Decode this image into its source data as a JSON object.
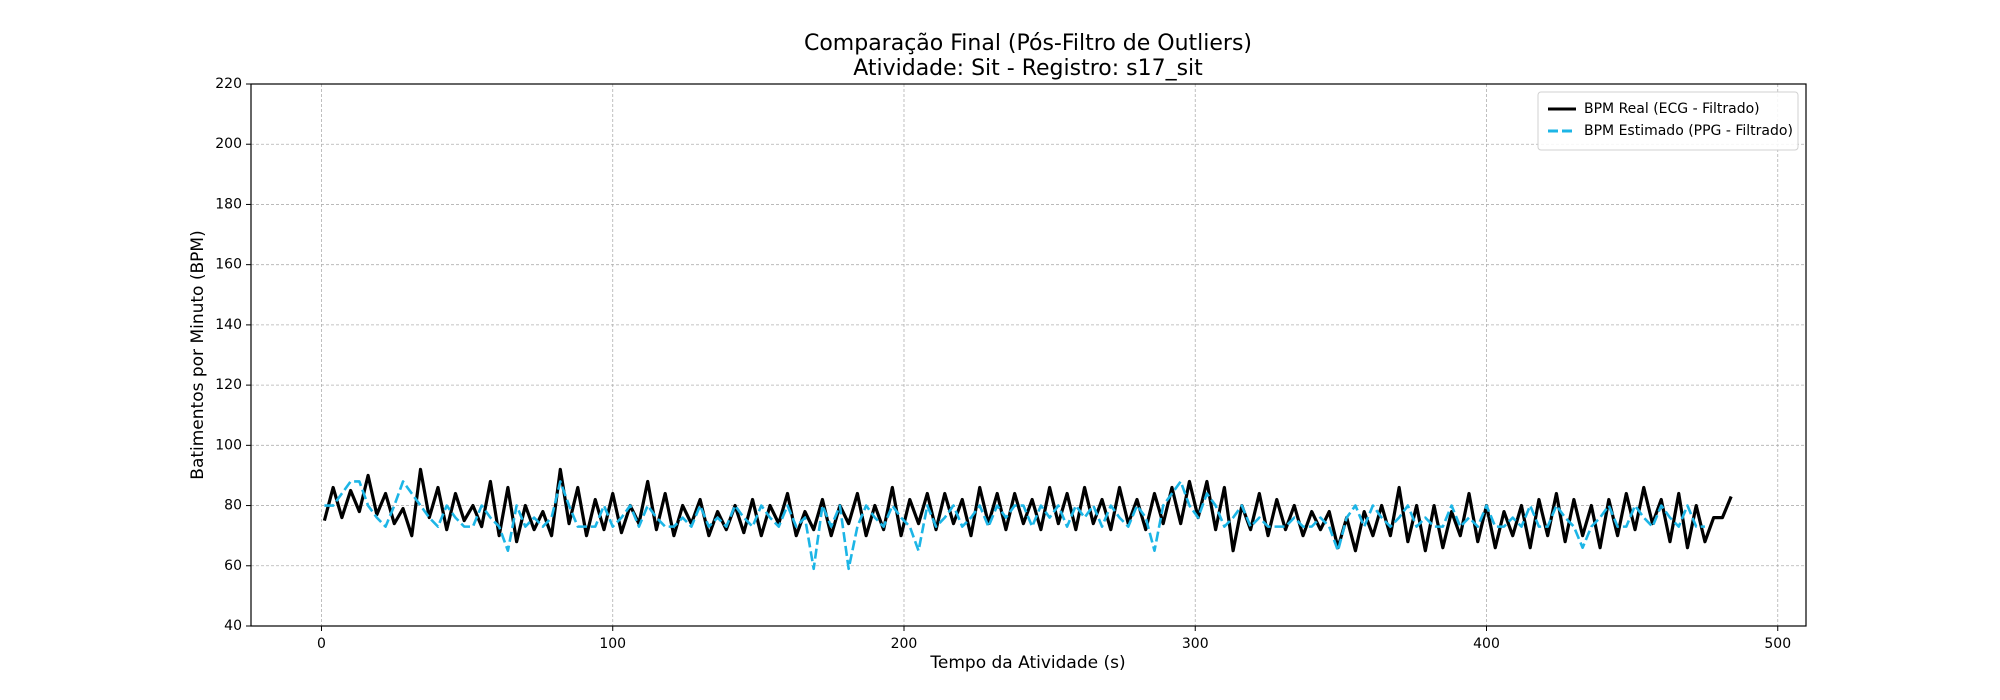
{
  "chart_data": {
    "type": "line",
    "title": "Comparação Final (Pós-Filtro de Outliers)",
    "subtitle": "Atividade: Sit - Registro: s17_sit",
    "x_label": "Tempo da Atividade (s)",
    "y_label": "Batimentos por Minuto (BPM)",
    "xlim": [
      -24.2,
      509.7
    ],
    "ylim": [
      40,
      220
    ],
    "xticks": [
      0,
      100,
      200,
      300,
      400,
      500
    ],
    "yticks": [
      40,
      60,
      80,
      100,
      120,
      140,
      160,
      180,
      200,
      220
    ],
    "grid": true,
    "legend": "upper right",
    "x": [
      1,
      4,
      7,
      10,
      13,
      16,
      19,
      22,
      25,
      28,
      31,
      34,
      37,
      40,
      43,
      46,
      49,
      52,
      55,
      58,
      61,
      64,
      67,
      70,
      73,
      76,
      79,
      82,
      85,
      88,
      91,
      94,
      97,
      100,
      103,
      106,
      109,
      112,
      115,
      118,
      121,
      124,
      127,
      130,
      133,
      136,
      139,
      142,
      145,
      148,
      151,
      154,
      157,
      160,
      163,
      166,
      169,
      172,
      175,
      178,
      181,
      184,
      187,
      190,
      193,
      196,
      199,
      202,
      205,
      208,
      211,
      214,
      217,
      220,
      223,
      226,
      229,
      232,
      235,
      238,
      241,
      244,
      247,
      250,
      253,
      256,
      259,
      262,
      265,
      268,
      271,
      274,
      277,
      280,
      283,
      286,
      289,
      292,
      295,
      298,
      301,
      304,
      307,
      310,
      313,
      316,
      319,
      322,
      325,
      328,
      331,
      334,
      337,
      340,
      343,
      346,
      349,
      352,
      355,
      358,
      361,
      364,
      367,
      370,
      373,
      376,
      379,
      382,
      385,
      388,
      391,
      394,
      397,
      400,
      403,
      406,
      409,
      412,
      415,
      418,
      421,
      424,
      427,
      430,
      433,
      436,
      439,
      442,
      445,
      448,
      451,
      454,
      457,
      460,
      463,
      466,
      469,
      472,
      475,
      478,
      481,
      484
    ],
    "series": [
      {
        "name": "BPM Real (ECG - Filtrado)",
        "color": "#000000",
        "dashed": false,
        "values": [
          75,
          86,
          76,
          85,
          78,
          90,
          77,
          84,
          74,
          79,
          70,
          92,
          76,
          86,
          72,
          84,
          75,
          80,
          73,
          88,
          70,
          86,
          68,
          80,
          72,
          78,
          70,
          92,
          74,
          86,
          70,
          82,
          72,
          84,
          71,
          80,
          74,
          88,
          72,
          84,
          70,
          80,
          74,
          82,
          70,
          78,
          72,
          80,
          71,
          82,
          70,
          80,
          74,
          84,
          70,
          78,
          72,
          82,
          70,
          80,
          74,
          84,
          70,
          80,
          72,
          86,
          70,
          82,
          74,
          84,
          72,
          84,
          74,
          82,
          70,
          86,
          74,
          84,
          72,
          84,
          74,
          82,
          72,
          86,
          74,
          84,
          72,
          86,
          74,
          82,
          72,
          86,
          74,
          82,
          72,
          84,
          74,
          86,
          74,
          88,
          76,
          88,
          72,
          86,
          65,
          80,
          72,
          84,
          70,
          82,
          72,
          80,
          70,
          78,
          72,
          78,
          66,
          76,
          65,
          78,
          70,
          80,
          70,
          86,
          68,
          80,
          65,
          80,
          66,
          78,
          70,
          84,
          68,
          80,
          66,
          78,
          70,
          80,
          66,
          82,
          70,
          84,
          68,
          82,
          70,
          80,
          66,
          82,
          70,
          84,
          72,
          86,
          74,
          82,
          68,
          84,
          66,
          80,
          68,
          76,
          76,
          83
        ]
      },
      {
        "name": "BPM Estimado (PPG - Filtrado)",
        "color": "#1cb5e6",
        "dashed": true,
        "values": [
          80,
          80,
          84,
          88,
          88,
          80,
          76,
          73,
          80,
          88,
          84,
          80,
          76,
          73,
          80,
          76,
          73,
          73,
          80,
          76,
          73,
          65,
          80,
          73,
          76,
          73,
          76,
          88,
          80,
          73,
          73,
          73,
          80,
          73,
          76,
          80,
          73,
          80,
          76,
          73,
          73,
          76,
          73,
          80,
          73,
          76,
          73,
          80,
          76,
          73,
          80,
          76,
          73,
          80,
          73,
          76,
          59,
          80,
          73,
          80,
          59,
          73,
          80,
          76,
          73,
          80,
          76,
          73,
          65,
          80,
          73,
          76,
          80,
          73,
          76,
          80,
          73,
          80,
          76,
          80,
          80,
          73,
          80,
          76,
          80,
          73,
          80,
          76,
          80,
          73,
          80,
          76,
          73,
          80,
          76,
          65,
          80,
          84,
          88,
          80,
          76,
          84,
          80,
          73,
          76,
          80,
          73,
          76,
          73,
          73,
          73,
          76,
          73,
          73,
          76,
          73,
          65,
          76,
          80,
          73,
          80,
          76,
          73,
          76,
          80,
          73,
          76,
          73,
          73,
          80,
          73,
          76,
          73,
          80,
          73,
          73,
          76,
          73,
          80,
          73,
          73,
          80,
          76,
          73,
          66,
          73,
          76,
          80,
          73,
          73,
          80,
          76,
          73,
          80,
          76,
          73,
          80,
          73,
          73,
          null,
          null,
          null
        ]
      }
    ]
  }
}
